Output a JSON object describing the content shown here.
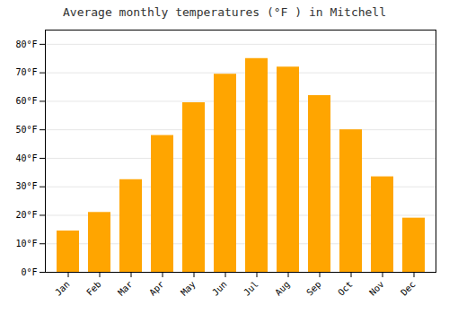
{
  "chart_data": {
    "type": "bar",
    "title": "Average monthly temperatures (°F ) in Mitchell",
    "categories": [
      "Jan",
      "Feb",
      "Mar",
      "Apr",
      "May",
      "Jun",
      "Jul",
      "Aug",
      "Sep",
      "Oct",
      "Nov",
      "Dec"
    ],
    "values": [
      14.5,
      21.0,
      32.5,
      48.0,
      59.5,
      69.5,
      75.0,
      72.0,
      62.0,
      50.0,
      33.5,
      19.0
    ],
    "color": "#FFA500",
    "ylim": [
      0,
      85
    ],
    "yticks": [
      {
        "value": 0,
        "label": "0°F"
      },
      {
        "value": 10,
        "label": "10°F"
      },
      {
        "value": 20,
        "label": "20°F"
      },
      {
        "value": 30,
        "label": "30°F"
      },
      {
        "value": 40,
        "label": "40°F"
      },
      {
        "value": 50,
        "label": "50°F"
      },
      {
        "value": 60,
        "label": "60°F"
      },
      {
        "value": 70,
        "label": "70°F"
      },
      {
        "value": 80,
        "label": "80°F"
      }
    ],
    "grid": true
  }
}
